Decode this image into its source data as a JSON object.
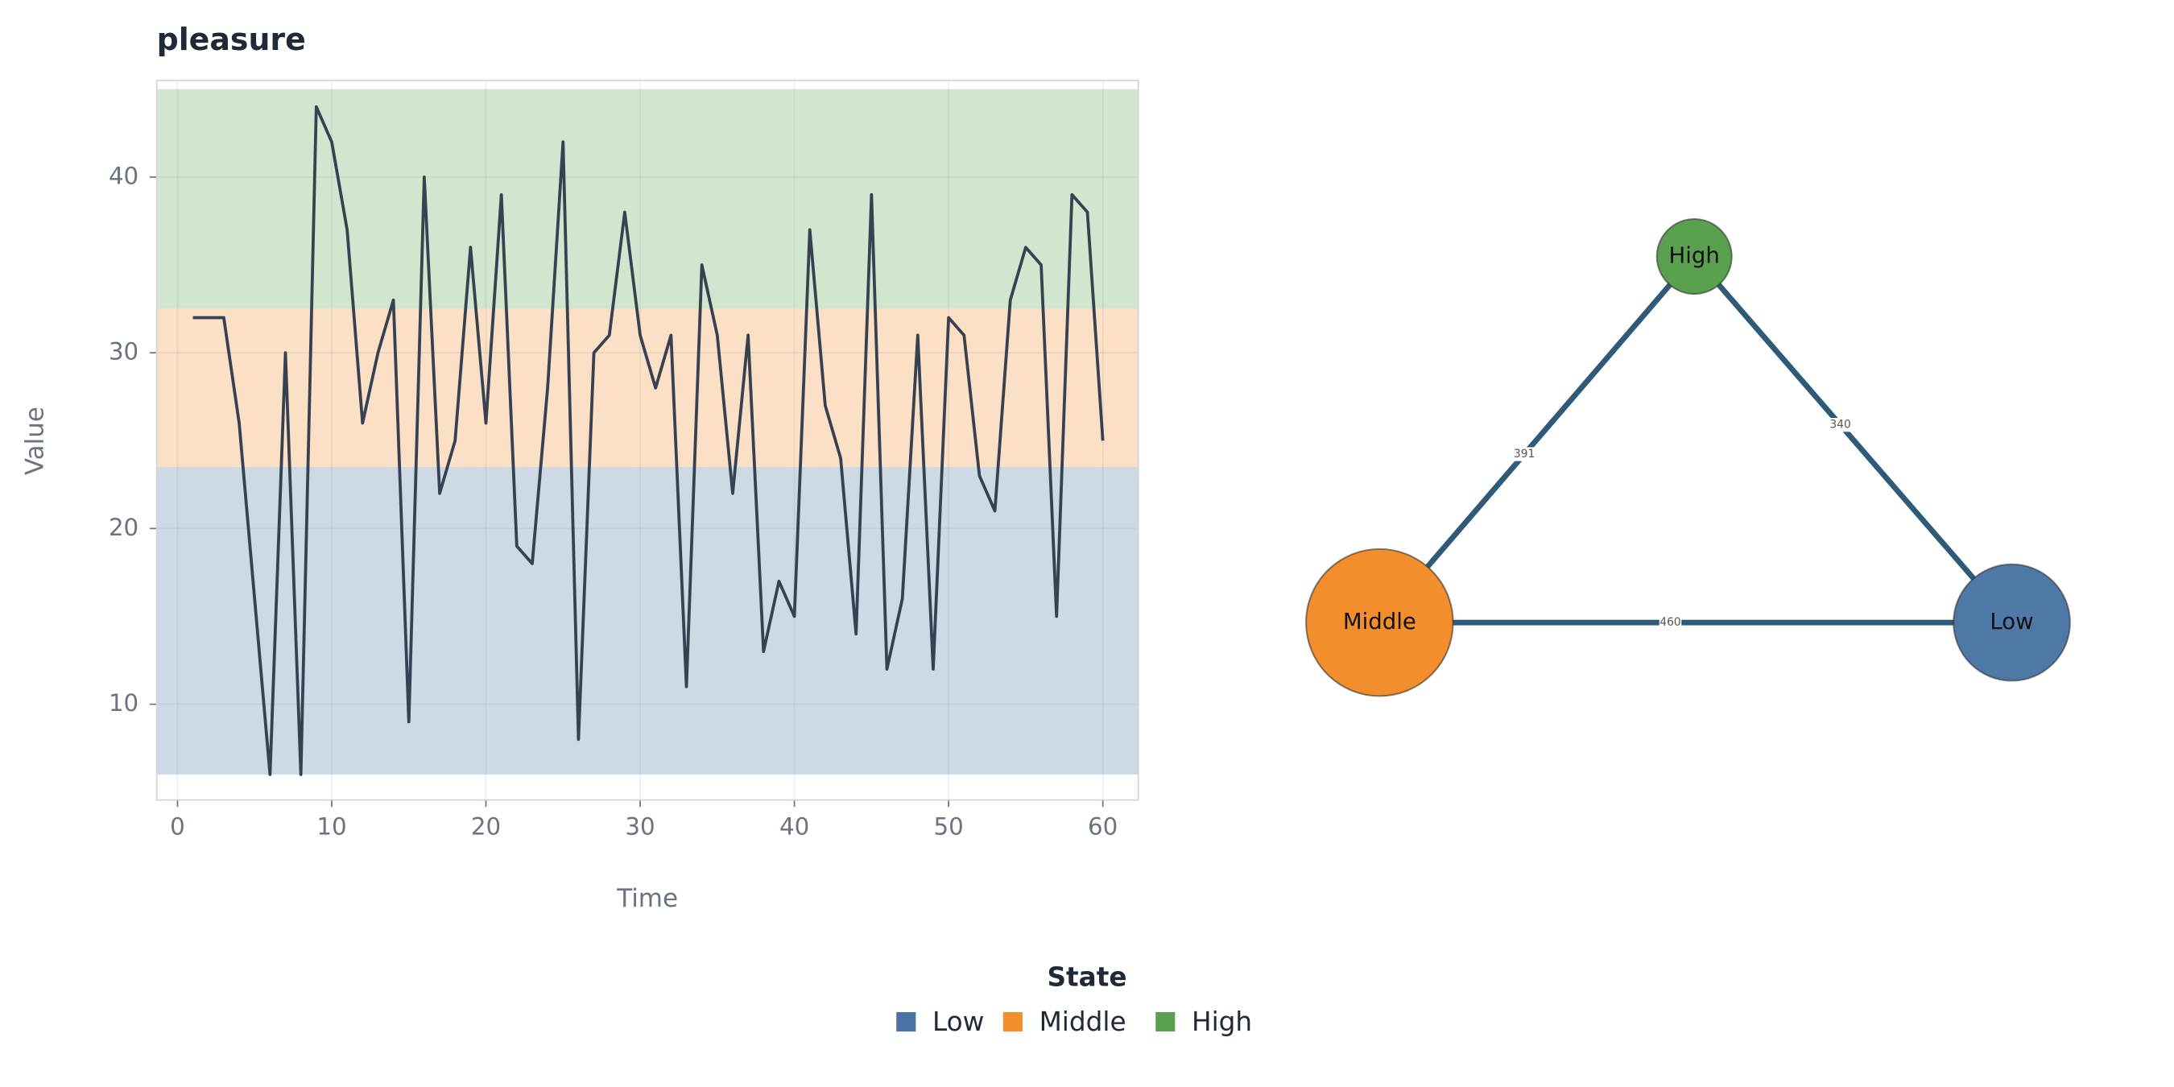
{
  "chart_data": [
    {
      "type": "line",
      "title": "pleasure",
      "x_label": "Time",
      "y_label": "Value",
      "x": [
        1,
        2,
        3,
        4,
        5,
        6,
        7,
        8,
        9,
        10,
        11,
        12,
        13,
        14,
        15,
        16,
        17,
        18,
        19,
        20,
        21,
        22,
        23,
        24,
        25,
        26,
        27,
        28,
        29,
        30,
        31,
        32,
        33,
        34,
        35,
        36,
        37,
        38,
        39,
        40,
        41,
        42,
        43,
        44,
        45,
        46,
        47,
        48,
        49,
        50,
        51,
        52,
        53,
        54,
        55,
        56,
        57,
        58,
        59,
        60
      ],
      "values": [
        32,
        32,
        32,
        26,
        16,
        6,
        30,
        6,
        44,
        42,
        37,
        26,
        30,
        33,
        9,
        40,
        22,
        25,
        36,
        26,
        39,
        19,
        18,
        28,
        42,
        8,
        30,
        31,
        38,
        31,
        28,
        31,
        11,
        35,
        31,
        22,
        31,
        13,
        17,
        15,
        37,
        27,
        24,
        14,
        39,
        12,
        16,
        31,
        12,
        32,
        31,
        23,
        21,
        33,
        36,
        35,
        15,
        39,
        38,
        25
      ],
      "color": "#374151",
      "bands": [
        {
          "name": "Low",
          "color": "#4a72a4",
          "range": [
            6,
            23.5
          ]
        },
        {
          "name": "Middle",
          "color": "#f28e2b",
          "range": [
            23.5,
            32.5
          ]
        },
        {
          "name": "High",
          "color": "#59a14f",
          "range": [
            32.5,
            45
          ]
        }
      ],
      "legend": {
        "title": "State",
        "position": "bottom"
      },
      "xlim": [
        -1.35,
        62.3
      ],
      "ylim": [
        4.55,
        45.5
      ],
      "xticks": [
        0,
        10,
        20,
        30,
        40,
        50,
        60
      ],
      "yticks": [
        10,
        20,
        30,
        40
      ],
      "grid": true
    },
    {
      "type": "network",
      "nodes": [
        {
          "label": "High",
          "color": "#59a14f"
        },
        {
          "label": "Middle",
          "color": "#f28e2b"
        },
        {
          "label": "Low",
          "color": "#4e79a7"
        }
      ],
      "edges": [
        {
          "source": 1,
          "target": 0,
          "value": 391
        },
        {
          "source": 0,
          "target": 2,
          "value": 340
        },
        {
          "source": 1,
          "target": 2,
          "value": 460
        }
      ],
      "edge_color": "#2f5a78"
    }
  ]
}
